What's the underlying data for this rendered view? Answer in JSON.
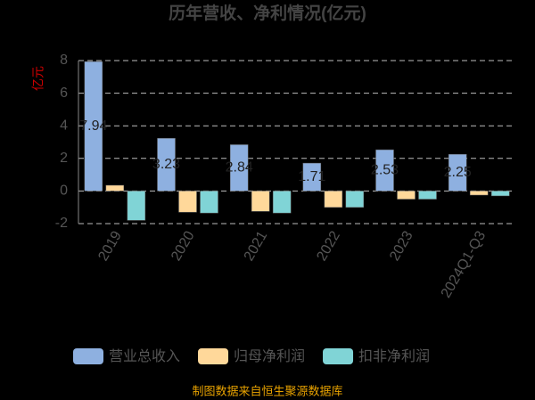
{
  "chart_data": {
    "type": "bar",
    "title": "历年营收、净利情况(亿元)",
    "y_label": "亿元",
    "categories": [
      "2019",
      "2020",
      "2021",
      "2022",
      "2023",
      "2024Q1-Q3"
    ],
    "series": [
      {
        "name": "营业总收入",
        "color": "#8eb0e0",
        "values": [
          7.94,
          3.23,
          2.84,
          1.71,
          2.53,
          2.25
        ]
      },
      {
        "name": "归母净利润",
        "color": "#ffd89a",
        "values": [
          0.35,
          -1.3,
          -1.25,
          -1.0,
          -0.5,
          -0.25
        ]
      },
      {
        "name": "扣非净利润",
        "color": "#80d4d6",
        "values": [
          -1.8,
          -1.35,
          -1.35,
          -1.0,
          -0.5,
          -0.3
        ]
      }
    ],
    "ylim": [
      -2,
      8
    ],
    "yticks": [
      -2,
      0,
      2,
      4,
      6,
      8
    ],
    "grid": true,
    "footer": "制图数据来自恒生聚源数据库"
  }
}
